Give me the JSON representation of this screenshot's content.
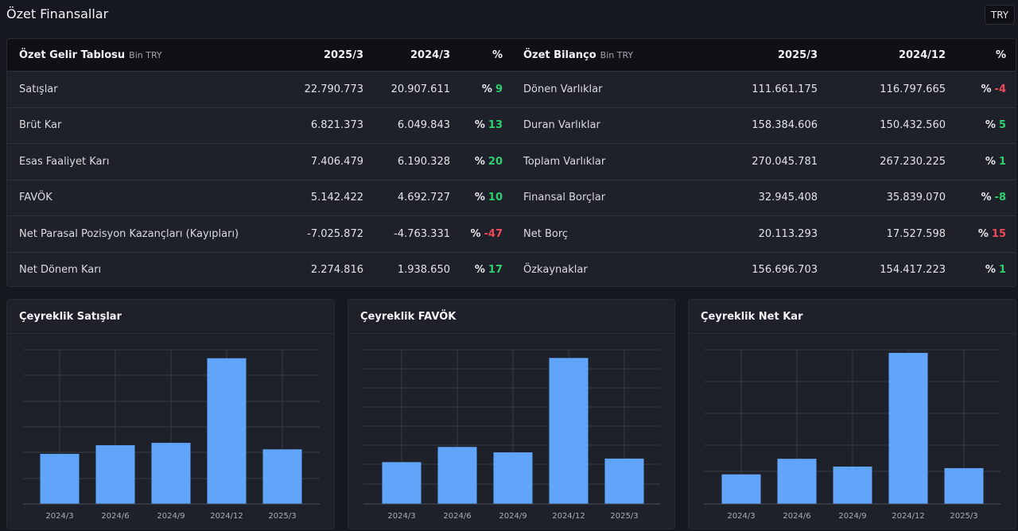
{
  "header": {
    "title": "Özet Finansallar",
    "currency": "TRY"
  },
  "income": {
    "title": "Özet Gelir Tablosu",
    "unit": "Bin TRY",
    "col1": "2025/3",
    "col2": "2024/3",
    "col3": "%",
    "rows": [
      {
        "label": "Satışlar",
        "v1": "22.790.773",
        "v2": "20.907.611",
        "pct": "9",
        "tone": "pos"
      },
      {
        "label": "Brüt Kar",
        "v1": "6.821.373",
        "v2": "6.049.843",
        "pct": "13",
        "tone": "pos"
      },
      {
        "label": "Esas Faaliyet Karı",
        "v1": "7.406.479",
        "v2": "6.190.328",
        "pct": "20",
        "tone": "pos"
      },
      {
        "label": "FAVÖK",
        "v1": "5.142.422",
        "v2": "4.692.727",
        "pct": "10",
        "tone": "pos"
      },
      {
        "label": "Net Parasal Pozisyon Kazançları (Kayıpları)",
        "v1": "-7.025.872",
        "v2": "-4.763.331",
        "pct": "-47",
        "tone": "neg"
      },
      {
        "label": "Net Dönem Karı",
        "v1": "2.274.816",
        "v2": "1.938.650",
        "pct": "17",
        "tone": "pos"
      }
    ]
  },
  "balance": {
    "title": "Özet Bilanço",
    "unit": "Bin TRY",
    "col1": "2025/3",
    "col2": "2024/12",
    "col3": "%",
    "rows": [
      {
        "label": "Dönen Varlıklar",
        "v1": "111.661.175",
        "v2": "116.797.665",
        "pct": "-4",
        "tone": "neg"
      },
      {
        "label": "Duran Varlıklar",
        "v1": "158.384.606",
        "v2": "150.432.560",
        "pct": "5",
        "tone": "pos"
      },
      {
        "label": "Toplam Varlıklar",
        "v1": "270.045.781",
        "v2": "267.230.225",
        "pct": "1",
        "tone": "pos"
      },
      {
        "label": "Finansal Borçlar",
        "v1": "32.945.408",
        "v2": "35.839.070",
        "pct": "-8",
        "tone": "pos"
      },
      {
        "label": "Net Borç",
        "v1": "20.113.293",
        "v2": "17.527.598",
        "pct": "15",
        "tone": "neg"
      },
      {
        "label": "Özkaynaklar",
        "v1": "156.696.703",
        "v2": "154.417.223",
        "pct": "1",
        "tone": "pos"
      }
    ]
  },
  "pct_sign": "%",
  "colors": {
    "bar": "#60a5fa",
    "positive": "#2ecf6e",
    "negative": "#ef4a5a",
    "grid": "#353a44"
  },
  "chart_data": [
    {
      "type": "bar",
      "title": "Çeyreklik Satışlar",
      "categories": [
        "2024/3",
        "2024/6",
        "2024/9",
        "2024/12",
        "2025/3"
      ],
      "values": [
        20.9,
        24.5,
        25.5,
        60.8,
        22.8
      ],
      "ylim": [
        0,
        65
      ],
      "grid": true
    },
    {
      "type": "bar",
      "title": "Çeyreklik FAVÖK",
      "categories": [
        "2024/3",
        "2024/6",
        "2024/9",
        "2024/12",
        "2025/3"
      ],
      "values": [
        4.7,
        6.4,
        5.8,
        16.4,
        5.1
      ],
      "ylim": [
        0,
        17.5
      ],
      "grid": true
    },
    {
      "type": "bar",
      "title": "Çeyreklik Net Kar",
      "categories": [
        "2024/3",
        "2024/6",
        "2024/9",
        "2024/12",
        "2025/3"
      ],
      "values": [
        1.9,
        2.9,
        2.4,
        9.7,
        2.3
      ],
      "ylim": [
        0,
        10
      ],
      "grid": true
    }
  ]
}
